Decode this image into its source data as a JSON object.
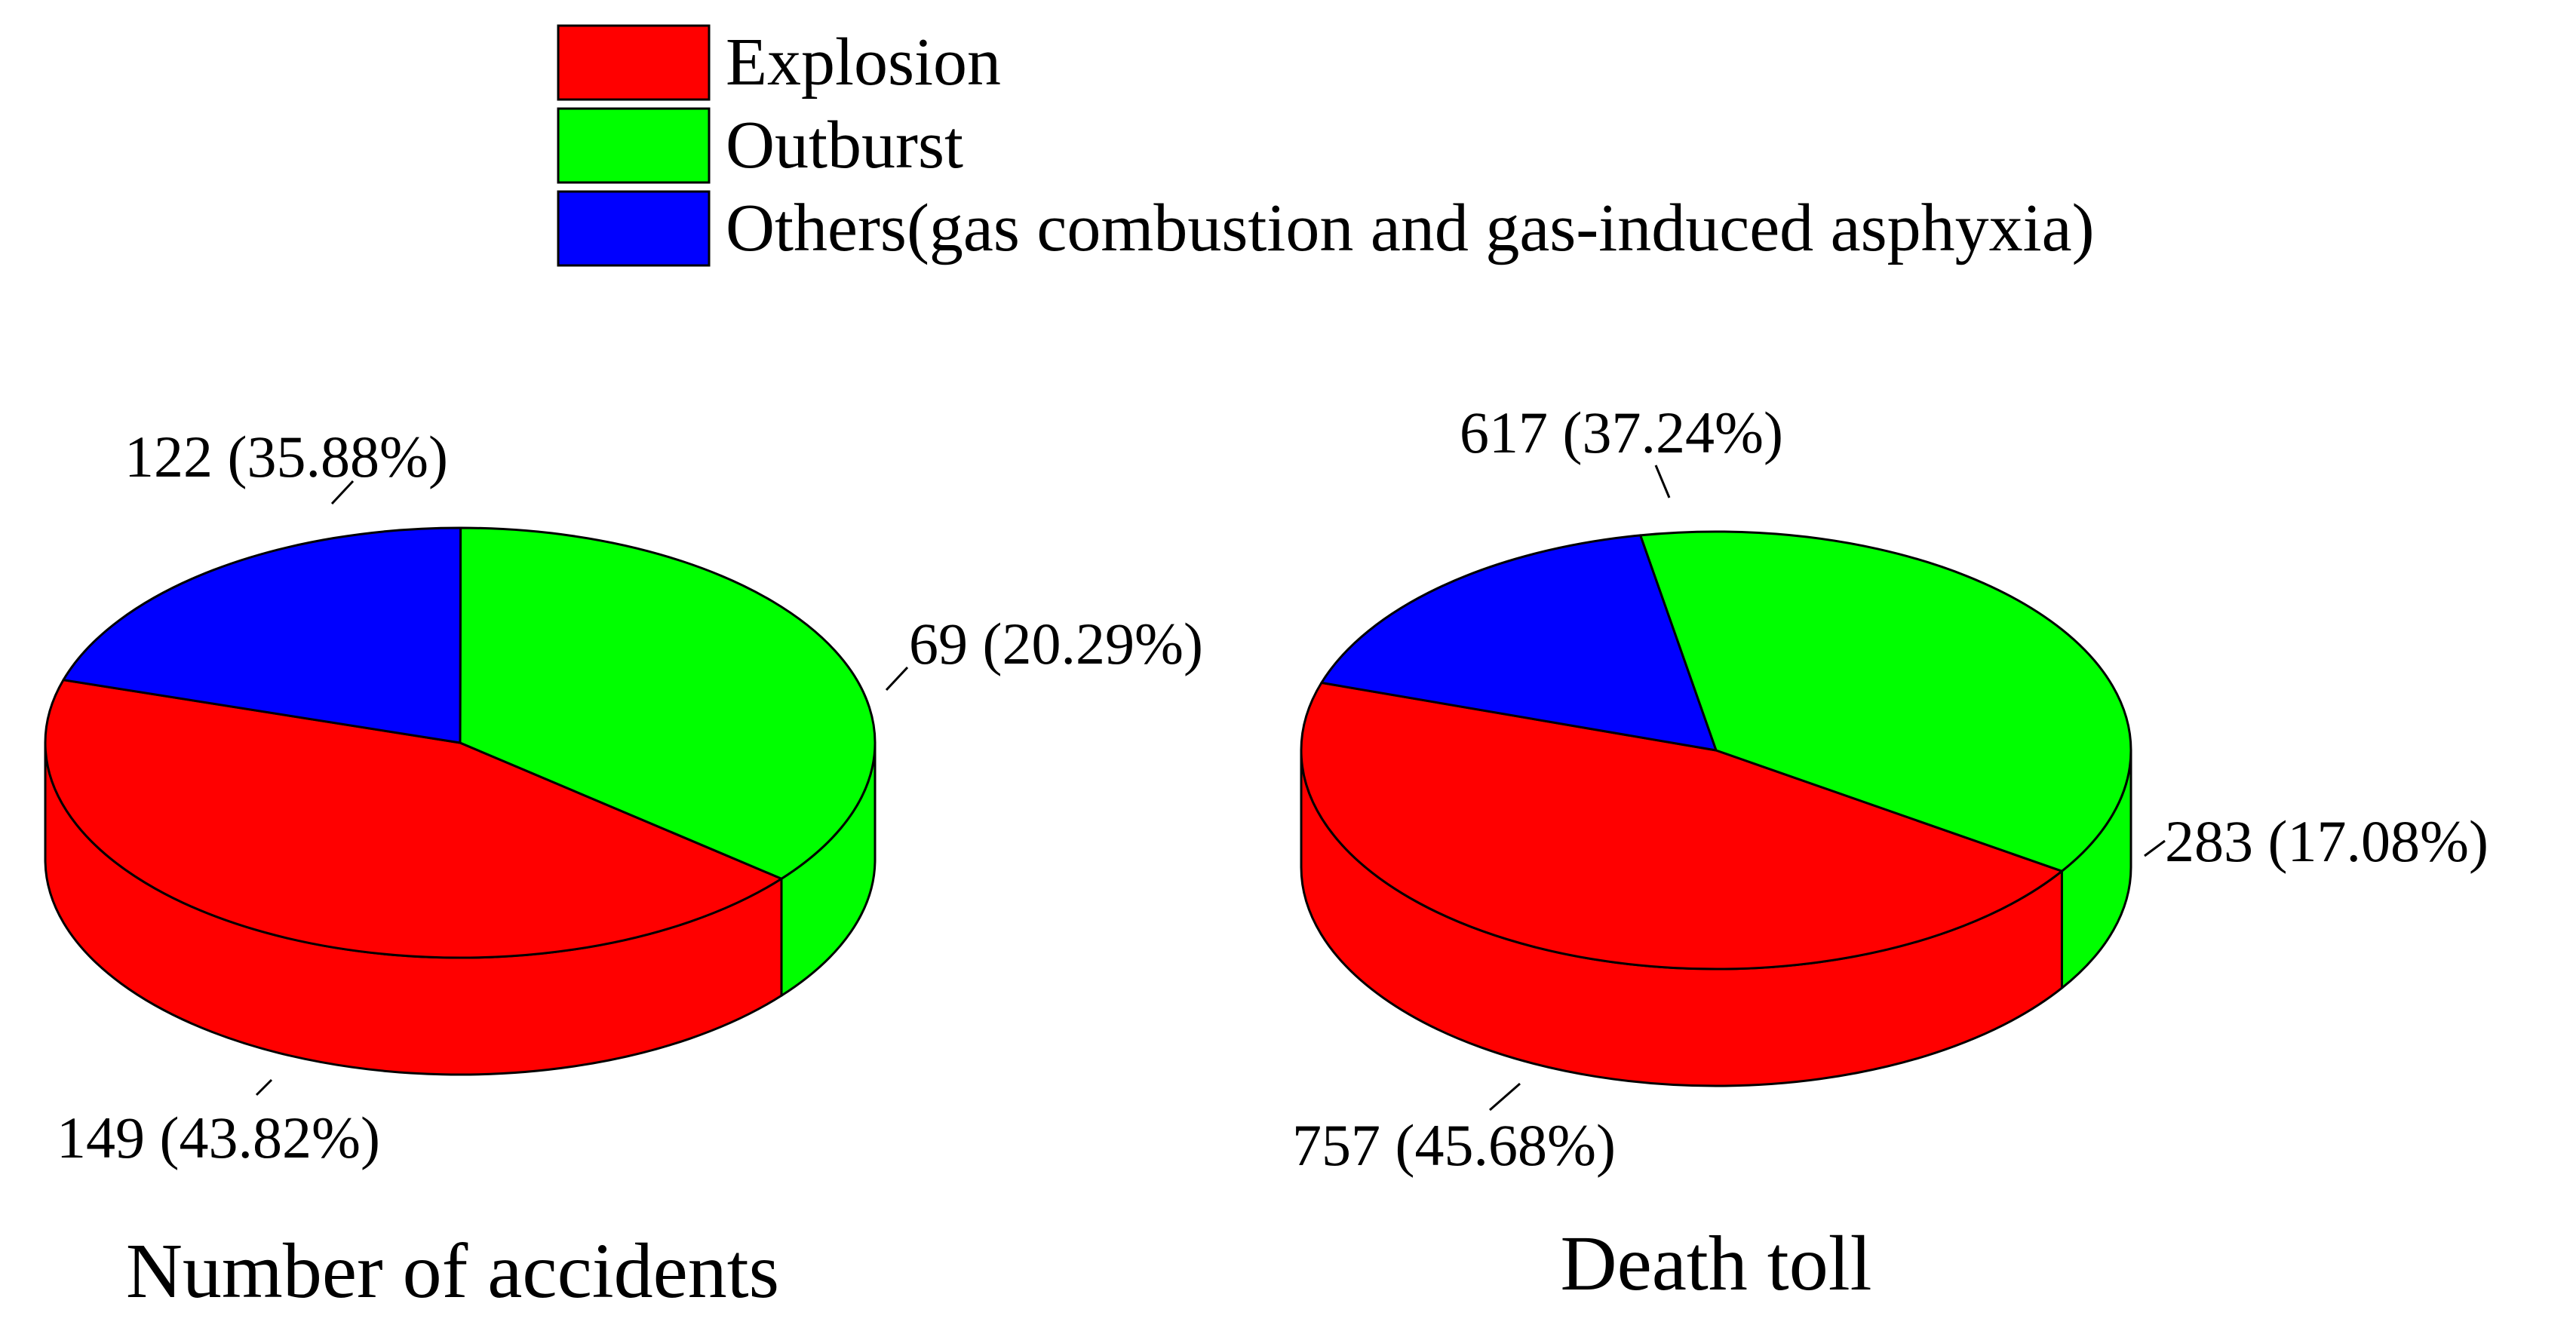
{
  "legend": [
    {
      "label": "Explosion",
      "color": "#ff0000"
    },
    {
      "label": "Outburst",
      "color": "#00ff00"
    },
    {
      "label": "Others(gas combustion and gas-induced asphyxia)",
      "color": "#0000ff"
    }
  ],
  "chart_data": [
    {
      "type": "pie",
      "title": "Number of accidents",
      "slices": [
        {
          "name": "Explosion",
          "value": 149,
          "percent": 43.82,
          "label": "149 (43.82%)",
          "color": "#ff0000"
        },
        {
          "name": "Outburst",
          "value": 122,
          "percent": 35.88,
          "label": "122 (35.88%)",
          "color": "#00ff00"
        },
        {
          "name": "Others(gas combustion and gas-induced asphyxia)",
          "value": 69,
          "percent": 20.29,
          "label": "69 (20.29%)",
          "color": "#0000ff"
        }
      ]
    },
    {
      "type": "pie",
      "title": "Death toll",
      "slices": [
        {
          "name": "Explosion",
          "value": 757,
          "percent": 45.68,
          "label": "757 (45.68%)",
          "color": "#ff0000"
        },
        {
          "name": "Outburst",
          "value": 617,
          "percent": 37.24,
          "label": "617 (37.24%)",
          "color": "#00ff00"
        },
        {
          "name": "Others(gas combustion and gas-induced asphyxia)",
          "value": 283,
          "percent": 17.08,
          "label": "283 (17.08%)",
          "color": "#0000ff"
        }
      ]
    }
  ]
}
